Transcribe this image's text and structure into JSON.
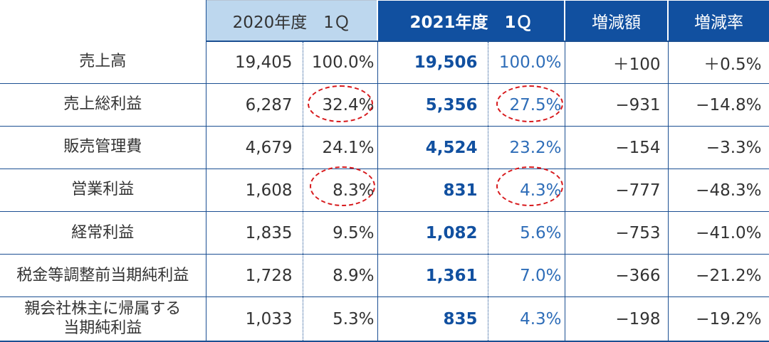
{
  "header": {
    "col_2020": "2020年度　1Ｑ",
    "col_2021": "2021年度　1Ｑ",
    "col_change_amount": "増減額",
    "col_change_rate": "増減率"
  },
  "rows": [
    {
      "label": "売上高",
      "v2020": "19,405",
      "p2020": "100.0%",
      "v2021": "19,506",
      "p2021": "100.0%",
      "chg": "＋100",
      "rate": "＋0.5%"
    },
    {
      "label": "売上総利益",
      "v2020": "6,287",
      "p2020": "32.4%",
      "v2021": "5,356",
      "p2021": "27.5%",
      "chg": "−931",
      "rate": "−14.8%"
    },
    {
      "label": "販売管理費",
      "v2020": "4,679",
      "p2020": "24.1%",
      "v2021": "4,524",
      "p2021": "23.2%",
      "chg": "−154",
      "rate": "−3.3%"
    },
    {
      "label": "営業利益",
      "v2020": "1,608",
      "p2020": "8.3%",
      "v2021": "831",
      "p2021": "4.3%",
      "chg": "−777",
      "rate": "−48.3%"
    },
    {
      "label": "経常利益",
      "v2020": "1,835",
      "p2020": "9.5%",
      "v2021": "1,082",
      "p2021": "5.6%",
      "chg": "−753",
      "rate": "−41.0%"
    },
    {
      "label": "税金等調整前当期純利益",
      "v2020": "1,728",
      "p2020": "8.9%",
      "v2021": "1,361",
      "p2021": "7.0%",
      "chg": "−366",
      "rate": "−21.2%"
    },
    {
      "label_line1": "親会社株主に帰属する",
      "label_line2": "当期純利益",
      "v2020": "1,033",
      "p2020": "5.3%",
      "v2021": "835",
      "p2021": "4.3%",
      "chg": "−198",
      "rate": "−19.2%"
    }
  ],
  "colors": {
    "header_2020_bg": "#bdd7ee",
    "header_2021_bg": "#1150a0",
    "value_2021_text": "#1150a0",
    "highlight_circle": "#d7191c"
  }
}
